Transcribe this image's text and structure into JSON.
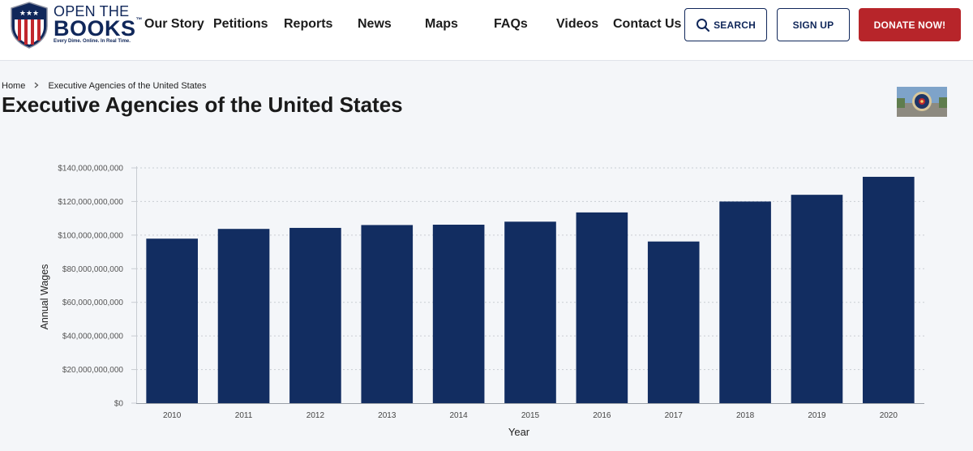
{
  "header": {
    "logo": {
      "line1": "OPEN THE",
      "line2": "BOOKS",
      "trademark": "™",
      "tagline": "Every Dime. Online. In Real Time."
    },
    "nav": [
      "Our Story",
      "Petitions",
      "Reports",
      "News",
      "Maps",
      "FAQs",
      "Videos",
      "Contact Us"
    ],
    "search_label": "SEARCH",
    "signup_label": "SIGN UP",
    "donate_label": "DONATE NOW!",
    "colors": {
      "brand_navy": "#10275a",
      "donate_red": "#b7252a"
    }
  },
  "breadcrumb": {
    "home": "Home",
    "separator_icon": "chevron-right-icon",
    "current": "Executive Agencies of the United States"
  },
  "page_title": "Executive Agencies of the United States",
  "chart_data": {
    "type": "bar",
    "title": "",
    "xlabel": "Year",
    "ylabel": "Annual Wages",
    "categories": [
      "2010",
      "2011",
      "2012",
      "2013",
      "2014",
      "2015",
      "2016",
      "2017",
      "2018",
      "2019",
      "2020"
    ],
    "values": [
      97900000000,
      103700000000,
      104300000000,
      106000000000,
      106200000000,
      108000000000,
      113500000000,
      96200000000,
      120000000000,
      124000000000,
      134700000000
    ],
    "ylim": [
      0,
      140000000000
    ],
    "yticks": [
      0,
      20000000000,
      40000000000,
      60000000000,
      80000000000,
      100000000000,
      120000000000,
      140000000000
    ],
    "ytick_labels": [
      "$0",
      "$20,000,000,000",
      "$40,000,000,000",
      "$60,000,000,000",
      "$80,000,000,000",
      "$100,000,000,000",
      "$120,000,000,000",
      "$140,000,000,000"
    ],
    "grid": true,
    "bar_color": "#122d61"
  }
}
